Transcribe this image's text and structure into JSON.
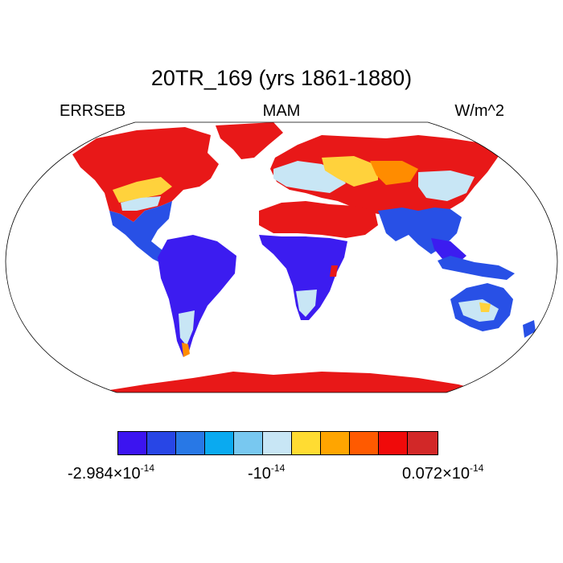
{
  "title": "20TR_169 (yrs 1861-1880)",
  "left_label": "ERRSEB",
  "center_label": "MAM",
  "right_label": "W/m^2",
  "colorbar": {
    "colors": [
      "#3c14f0",
      "#2846e6",
      "#2878e6",
      "#0aaaf0",
      "#78c8f0",
      "#c8e6f5",
      "#ffdc32",
      "#ffa500",
      "#ff5a00",
      "#f00a0a",
      "#d22828"
    ],
    "label_min": {
      "mantissa": "-2.984",
      "exp": "-14"
    },
    "label_mid": {
      "base": "-10",
      "exp": "-14"
    },
    "label_max": {
      "mantissa": "0.072",
      "exp": "-14"
    },
    "times_sign": "×"
  },
  "map": {
    "projection": "Robinson",
    "fill_colors": {
      "ocean": "#ffffff",
      "high": "#e81818",
      "mid_high": "#ff8c00",
      "mid": "#ffd23c",
      "light": "#c8e6f5",
      "low": "#2850e6",
      "lowest": "#3c1cf0"
    }
  }
}
